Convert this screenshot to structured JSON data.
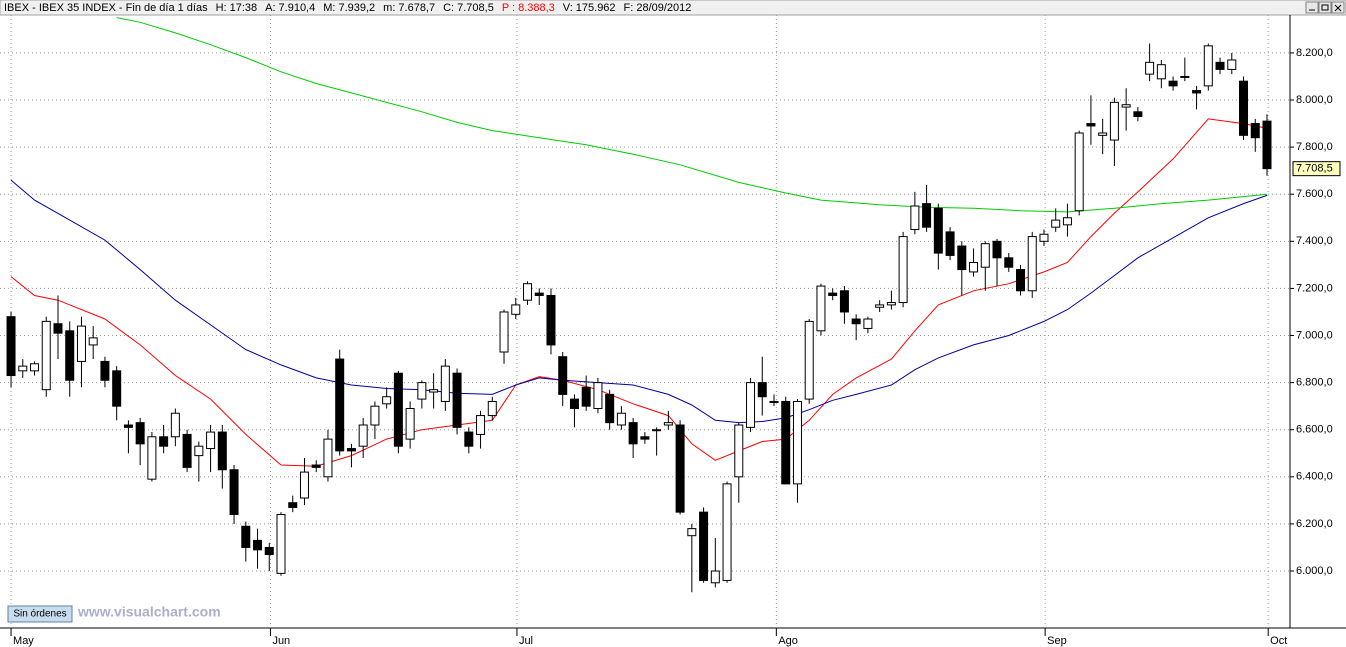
{
  "header": {
    "symbol": "IBEX - IBEX 35 INDEX - Fin de día 1 días",
    "items": [
      {
        "label": "H:",
        "value": "17:38"
      },
      {
        "label": "A:",
        "value": "7.910,4"
      },
      {
        "label": "M:",
        "value": "7.939,2"
      },
      {
        "label": "m:",
        "value": "7.678,7"
      },
      {
        "label": "C:",
        "value": "7.708,5"
      },
      {
        "label": "P :",
        "value": "8.388,3",
        "color": "#ff0000"
      },
      {
        "label": "V:",
        "value": "175.962"
      },
      {
        "label": "F:",
        "value": "28/09/2012"
      }
    ]
  },
  "badge": "Sin órdenes",
  "watermark": "www.visualchart.com",
  "chart_data": {
    "type": "candlestick",
    "up_color": "#ffffff",
    "down_color": "#000000",
    "outline_color": "#000000",
    "open": [
      7080,
      6850,
      6850,
      6770,
      7050,
      7020,
      6890,
      6960,
      6890,
      6850,
      6620,
      6630,
      6390,
      6570,
      6570,
      6580,
      6490,
      6520,
      6590,
      6430,
      6190,
      6130,
      6100,
      5990,
      6290,
      6310,
      6450,
      6400,
      6900,
      6520,
      6530,
      6620,
      6710,
      6840,
      6560,
      6730,
      6760,
      6720,
      6840,
      6590,
      6580,
      6660,
      6930,
      7090,
      7150,
      7180,
      7170,
      6910,
      6730,
      6780,
      6690,
      6750,
      6620,
      6630,
      6570,
      6600,
      6620,
      6620,
      6150,
      6250,
      5950,
      5960,
      6400,
      6610,
      6800,
      6720,
      6720,
      6370,
      6730,
      7020,
      7180,
      7190,
      7070,
      7030,
      7120,
      7130,
      7140,
      7450,
      7560,
      7540,
      7440,
      7380,
      7270,
      7290,
      7400,
      7330,
      7280,
      7190,
      7400,
      7460,
      7470,
      7530,
      7900,
      7850,
      7830,
      7970,
      7950,
      8110,
      8090,
      8080,
      8100,
      8040,
      8060,
      8160,
      8130,
      8080,
      7900,
      7910.4
    ],
    "high": [
      7100,
      6900,
      6890,
      7080,
      7170,
      7060,
      7080,
      7040,
      6910,
      6870,
      6640,
      6650,
      6590,
      6620,
      6690,
      6600,
      6550,
      6620,
      6620,
      6450,
      6210,
      6180,
      6120,
      6250,
      6320,
      6480,
      6470,
      6600,
      6940,
      6540,
      6650,
      6720,
      6780,
      6850,
      6720,
      6810,
      6840,
      6900,
      6860,
      6610,
      6680,
      6740,
      7110,
      7160,
      7230,
      7200,
      7200,
      6930,
      6750,
      6830,
      6820,
      6770,
      6700,
      6650,
      6590,
      6610,
      6680,
      6640,
      6200,
      6270,
      6140,
      6380,
      6630,
      6820,
      6910,
      6750,
      6740,
      6730,
      7070,
      7220,
      7200,
      7210,
      7090,
      7080,
      7150,
      7190,
      7440,
      7610,
      7640,
      7560,
      7460,
      7400,
      7370,
      7400,
      7410,
      7350,
      7300,
      7440,
      7450,
      7540,
      7560,
      7870,
      8020,
      7920,
      8010,
      8050,
      7970,
      8240,
      8170,
      8100,
      8180,
      8060,
      8240,
      8180,
      8200,
      8100,
      7920,
      7939.2
    ],
    "low": [
      6780,
      6820,
      6830,
      6740,
      6900,
      6740,
      6780,
      6900,
      6780,
      6640,
      6500,
      6450,
      6380,
      6500,
      6530,
      6420,
      6380,
      6420,
      6350,
      6200,
      6040,
      6010,
      6000,
      5980,
      6250,
      6280,
      6420,
      6380,
      6490,
      6440,
      6480,
      6560,
      6690,
      6500,
      6520,
      6690,
      6690,
      6680,
      6580,
      6500,
      6520,
      6640,
      6880,
      7070,
      7130,
      7130,
      6920,
      6700,
      6610,
      6680,
      6670,
      6600,
      6600,
      6480,
      6540,
      6490,
      6600,
      6240,
      5910,
      5950,
      5930,
      5950,
      6290,
      6590,
      6660,
      6700,
      6370,
      6290,
      6710,
      7000,
      7150,
      7050,
      6980,
      7010,
      7100,
      7110,
      7120,
      7430,
      7440,
      7280,
      7320,
      7170,
      7250,
      7190,
      7210,
      7270,
      7170,
      7160,
      7380,
      7440,
      7420,
      7510,
      7810,
      7770,
      7720,
      7870,
      7910,
      8080,
      8050,
      8040,
      8080,
      7960,
      8040,
      8110,
      8110,
      7830,
      7780,
      7678.7
    ],
    "close": [
      6830,
      6870,
      6880,
      7060,
      7010,
      6810,
      7040,
      6990,
      6810,
      6700,
      6610,
      6540,
      6570,
      6530,
      6670,
      6440,
      6530,
      6590,
      6430,
      6240,
      6100,
      6090,
      6070,
      6240,
      6270,
      6420,
      6440,
      6560,
      6510,
      6510,
      6620,
      6700,
      6740,
      6530,
      6690,
      6800,
      6770,
      6870,
      6610,
      6530,
      6660,
      6720,
      7100,
      7130,
      7220,
      7170,
      6960,
      6750,
      6690,
      6700,
      6800,
      6630,
      6670,
      6540,
      6560,
      6600,
      6630,
      6250,
      6180,
      5960,
      6000,
      6370,
      6620,
      6800,
      6740,
      6720,
      6370,
      6720,
      7060,
      7210,
      7170,
      7100,
      7050,
      7070,
      7130,
      7140,
      7420,
      7550,
      7460,
      7350,
      7340,
      7280,
      7310,
      7390,
      7330,
      7290,
      7190,
      7420,
      7430,
      7490,
      7500,
      7860,
      7890,
      7860,
      7990,
      7980,
      7930,
      8160,
      8150,
      8060,
      8100,
      8030,
      8230,
      8130,
      8170,
      7850,
      7840,
      7708.5
    ],
    "overlays": [
      {
        "color": "#ff0000",
        "x": [
          0,
          2,
          4,
          8,
          11,
          14,
          17,
          20,
          23,
          26,
          29,
          32,
          35,
          38,
          41,
          43,
          45,
          47,
          50,
          53,
          56,
          58,
          60,
          62,
          64,
          66,
          68,
          70,
          72,
          75,
          77,
          79,
          82,
          85,
          88,
          90,
          92,
          94,
          96,
          99,
          102,
          105,
          107
        ],
        "values": [
          7250,
          7170,
          7150,
          7070,
          6960,
          6830,
          6730,
          6580,
          6450,
          6445,
          6490,
          6560,
          6600,
          6620,
          6640,
          6790,
          6825,
          6810,
          6770,
          6710,
          6660,
          6540,
          6470,
          6510,
          6550,
          6560,
          6640,
          6750,
          6820,
          6900,
          7020,
          7130,
          7190,
          7220,
          7270,
          7310,
          7420,
          7520,
          7610,
          7750,
          7920,
          7900,
          7880
        ]
      },
      {
        "color": "#0000a0",
        "x": [
          0,
          2,
          5,
          8,
          11,
          14,
          17,
          20,
          23,
          26,
          29,
          32,
          35,
          38,
          41,
          43,
          45,
          47,
          50,
          53,
          56,
          58,
          60,
          62,
          64,
          66,
          68,
          70,
          72,
          75,
          77,
          79,
          82,
          85,
          88,
          90,
          92,
          94,
          96,
          99,
          102,
          105,
          107
        ],
        "values": [
          7660,
          7575,
          7490,
          7405,
          7280,
          7150,
          7045,
          6940,
          6875,
          6820,
          6790,
          6775,
          6770,
          6755,
          6750,
          6790,
          6820,
          6810,
          6800,
          6790,
          6750,
          6705,
          6640,
          6630,
          6635,
          6650,
          6685,
          6725,
          6750,
          6790,
          6855,
          6905,
          6960,
          7000,
          7060,
          7110,
          7180,
          7255,
          7330,
          7415,
          7500,
          7560,
          7595
        ]
      },
      {
        "color": "#00cc00",
        "x": [
          9,
          11,
          14,
          17,
          20,
          23,
          26,
          29,
          32,
          35,
          38,
          41,
          45,
          49,
          53,
          57,
          62,
          66,
          69,
          74,
          78,
          82,
          86,
          90,
          94,
          98,
          102,
          105,
          107
        ],
        "values": [
          8350,
          8330,
          8285,
          8235,
          8180,
          8120,
          8070,
          8030,
          7990,
          7950,
          7905,
          7870,
          7840,
          7810,
          7770,
          7725,
          7650,
          7605,
          7575,
          7555,
          7545,
          7540,
          7530,
          7525,
          7540,
          7560,
          7575,
          7590,
          7600
        ]
      }
    ],
    "last_price": {
      "value": 7708.5,
      "label": "7.708,5"
    },
    "xlim": [
      -0.94,
      108.96
    ],
    "xticks": [
      {
        "value": 0,
        "label": "May"
      },
      {
        "value": 22.1,
        "label": "Jun"
      },
      {
        "value": 43.1,
        "label": "Jul"
      },
      {
        "value": 65.2,
        "label": "Ago"
      },
      {
        "value": 88.1,
        "label": "Sep"
      },
      {
        "value": 107.1,
        "label": "Oct"
      }
    ],
    "ylim": [
      5758,
      8361
    ],
    "yticks": [
      {
        "value": 6000,
        "label": "6.000,0"
      },
      {
        "value": 6200,
        "label": "6.200,0"
      },
      {
        "value": 6400,
        "label": "6.400,0"
      },
      {
        "value": 6600,
        "label": "6.600,0"
      },
      {
        "value": 6800,
        "label": "6.800,0"
      },
      {
        "value": 7000,
        "label": "7.000,0"
      },
      {
        "value": 7200,
        "label": "7.200,0"
      },
      {
        "value": 7400,
        "label": "7.400,0"
      },
      {
        "value": 7600,
        "label": "7.600,0"
      },
      {
        "value": 7800,
        "label": "7.800,0"
      },
      {
        "value": 8000,
        "label": "8.000,0"
      },
      {
        "value": 8200,
        "label": "8.200,0"
      }
    ],
    "grid": true
  }
}
